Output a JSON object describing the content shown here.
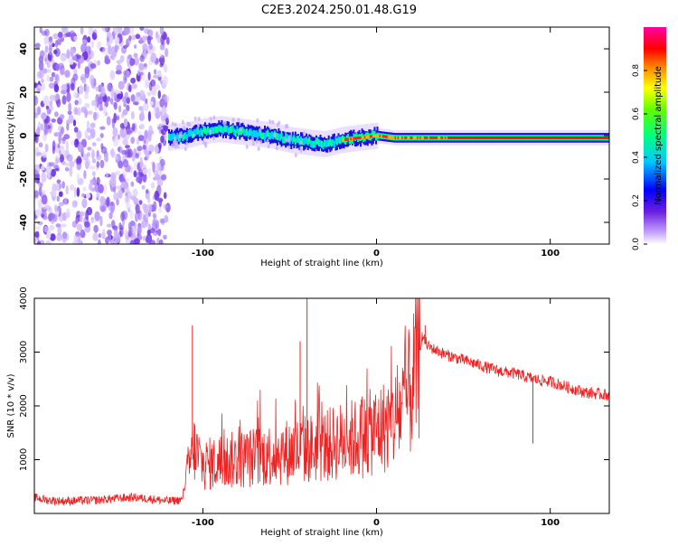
{
  "title": "C2E3.2024.250.01.48.G19",
  "chart_data": [
    {
      "type": "heatmap",
      "xlabel": "Height of straight line (km)",
      "ylabel": "Frequency (Hz)",
      "xlim": [
        -197,
        134
      ],
      "ylim": [
        -50,
        50
      ],
      "xticks": [
        -100,
        0,
        100
      ],
      "yticks": [
        -40,
        -20,
        0,
        20,
        40
      ],
      "grid": false,
      "ridge": {
        "x": [
          -120,
          -110,
          -100,
          -90,
          -80,
          -70,
          -60,
          -50,
          -40,
          -30,
          -20,
          -10,
          0,
          10,
          20,
          40,
          60,
          80,
          100,
          134
        ],
        "freq": [
          -1,
          0,
          2,
          3,
          2,
          1,
          0,
          -2,
          -3,
          -4,
          -2,
          -1,
          0,
          -1,
          -1,
          -1,
          -1,
          -1,
          -1,
          -1
        ]
      },
      "noise_region_x": [
        -197,
        -120
      ],
      "colorbar": {
        "label": "Normalized spectral amplitude",
        "range": [
          0,
          1
        ],
        "ticks": [
          "0.0",
          "0.2",
          "0.4",
          "0.6",
          "0.8"
        ]
      }
    },
    {
      "type": "line",
      "xlabel": "Height of straight line (km)",
      "ylabel": "SNR (10 * v/v)",
      "xlim": [
        -197,
        134
      ],
      "ylim": [
        0,
        4000
      ],
      "xticks": [
        -100,
        0,
        100
      ],
      "yticks": [
        1000,
        2000,
        3000,
        4000
      ],
      "grid": false,
      "series": [
        {
          "color": "#ee2222",
          "x": [
            -197,
            -190,
            -180,
            -170,
            -160,
            -150,
            -140,
            -130,
            -120,
            -112,
            -108,
            -105,
            -100,
            -90,
            -80,
            -70,
            -60,
            -50,
            -40,
            -30,
            -20,
            -10,
            0,
            10,
            15,
            20,
            25,
            26,
            30,
            40,
            50,
            60,
            70,
            80,
            90,
            100,
            110,
            120,
            134
          ],
          "y": [
            300,
            250,
            230,
            240,
            250,
            280,
            300,
            270,
            230,
            250,
            900,
            1200,
            900,
            950,
            1000,
            1050,
            1100,
            1150,
            1200,
            1250,
            1350,
            1400,
            1550,
            1700,
            2000,
            2300,
            3000,
            3300,
            3100,
            2950,
            2850,
            2750,
            2650,
            2600,
            2500,
            2450,
            2350,
            2250,
            2200
          ]
        }
      ],
      "spikes": [
        {
          "x": -106,
          "y": 3500
        },
        {
          "x": -40,
          "y": 4000
        },
        {
          "x": -44,
          "y": 3200
        },
        {
          "x": 90,
          "y": 1300
        },
        {
          "x": 28,
          "y": 3500
        }
      ]
    }
  ],
  "icons": {
    "colorbar": "rainbow-gradient"
  }
}
